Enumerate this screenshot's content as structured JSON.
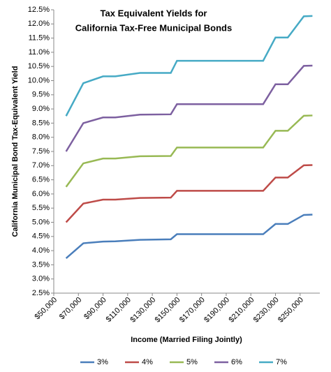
{
  "chart_data": {
    "type": "line",
    "title": [
      "Tax Equivalent Yields for",
      "California Tax-Free Municipal Bonds"
    ],
    "x_label": "Income (Married Filing Jointly)",
    "y_label": "California Municipal Bond Tax-Equivalent Yield",
    "x": [
      60000,
      74000,
      90000,
      100000,
      120000,
      145000,
      150000,
      220000,
      230000,
      240000,
      253000,
      260000
    ],
    "series": [
      {
        "name": "3%",
        "color": "#4a7ebb",
        "values": [
          3.73,
          4.26,
          4.32,
          4.33,
          4.38,
          4.4,
          4.58,
          4.58,
          4.94,
          4.94,
          5.26,
          5.27
        ]
      },
      {
        "name": "4%",
        "color": "#be4b48",
        "values": [
          5.0,
          5.66,
          5.8,
          5.8,
          5.86,
          5.87,
          6.11,
          6.11,
          6.58,
          6.58,
          7.01,
          7.02
        ]
      },
      {
        "name": "5%",
        "color": "#98b954",
        "values": [
          6.25,
          7.08,
          7.25,
          7.25,
          7.33,
          7.34,
          7.64,
          7.64,
          8.23,
          8.23,
          8.76,
          8.77
        ]
      },
      {
        "name": "6%",
        "color": "#7d60a0",
        "values": [
          7.5,
          8.5,
          8.7,
          8.7,
          8.8,
          8.81,
          9.17,
          9.17,
          9.87,
          9.87,
          10.52,
          10.53
        ]
      },
      {
        "name": "7%",
        "color": "#46aac5",
        "values": [
          8.75,
          9.91,
          10.15,
          10.15,
          10.27,
          10.27,
          10.7,
          10.7,
          11.52,
          11.52,
          12.27,
          12.28
        ]
      }
    ],
    "xlim": [
      50000,
      266000
    ],
    "xticks": [
      {
        "value": 50000,
        "label": "$50,000"
      },
      {
        "value": 70000,
        "label": "$70,000"
      },
      {
        "value": 90000,
        "label": "$90,000"
      },
      {
        "value": 110000,
        "label": "$110,000"
      },
      {
        "value": 130000,
        "label": "$130,000"
      },
      {
        "value": 150000,
        "label": "$150,000"
      },
      {
        "value": 170000,
        "label": "$170,000"
      },
      {
        "value": 190000,
        "label": "$190,000"
      },
      {
        "value": 210000,
        "label": "$210,000"
      },
      {
        "value": 230000,
        "label": "$230,000"
      },
      {
        "value": 250000,
        "label": "$250,000"
      }
    ],
    "ylim": [
      2.5,
      12.5
    ],
    "yticks": [
      {
        "value": 2.5,
        "label": "2.5%"
      },
      {
        "value": 3.0,
        "label": "3.0%"
      },
      {
        "value": 3.5,
        "label": "3.5%"
      },
      {
        "value": 4.0,
        "label": "4.0%"
      },
      {
        "value": 4.5,
        "label": "4.5%"
      },
      {
        "value": 5.0,
        "label": "5.0%"
      },
      {
        "value": 5.5,
        "label": "5.5%"
      },
      {
        "value": 6.0,
        "label": "6.0%"
      },
      {
        "value": 6.5,
        "label": "6.5%"
      },
      {
        "value": 7.0,
        "label": "7.0%"
      },
      {
        "value": 7.5,
        "label": "7.5%"
      },
      {
        "value": 8.0,
        "label": "8.0%"
      },
      {
        "value": 8.5,
        "label": "8.5%"
      },
      {
        "value": 9.0,
        "label": "9.0%"
      },
      {
        "value": 9.5,
        "label": "9.5%"
      },
      {
        "value": 10.0,
        "label": "10.0%"
      },
      {
        "value": 10.5,
        "label": "10.5%"
      },
      {
        "value": 11.0,
        "label": "11.0%"
      },
      {
        "value": 11.5,
        "label": "11.5%"
      },
      {
        "value": 12.0,
        "label": "12.0%"
      },
      {
        "value": 12.5,
        "label": "12.5%"
      }
    ],
    "grid": false,
    "legend": "bottom"
  }
}
